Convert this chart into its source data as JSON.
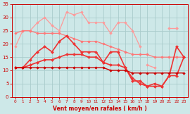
{
  "bg_color": "#cde8e8",
  "grid_color": "#aacccc",
  "text_color": "#cc0000",
  "xlabel": "Vent moyen/en rafales ( km/h )",
  "xlim": [
    -0.5,
    23.5
  ],
  "ylim": [
    0,
    35
  ],
  "yticks": [
    0,
    5,
    10,
    15,
    20,
    25,
    30,
    35
  ],
  "xticks": [
    0,
    1,
    2,
    3,
    4,
    5,
    6,
    7,
    8,
    9,
    10,
    11,
    12,
    13,
    14,
    15,
    16,
    17,
    18,
    19,
    20,
    21,
    22,
    23
  ],
  "series": [
    {
      "color": "#ff9999",
      "lw": 0.9,
      "marker": "D",
      "ms": 1.8,
      "y": [
        19,
        25,
        25,
        28,
        30,
        27,
        25,
        32,
        31,
        32,
        28,
        28,
        28,
        24,
        28,
        28,
        25,
        19,
        null,
        null,
        null,
        26,
        26,
        null
      ]
    },
    {
      "color": "#ff9999",
      "lw": 0.9,
      "marker": "D",
      "ms": 1.8,
      "y": [
        null,
        null,
        null,
        null,
        null,
        null,
        null,
        null,
        null,
        null,
        null,
        null,
        null,
        null,
        null,
        null,
        null,
        null,
        12,
        11,
        null,
        null,
        26,
        null
      ]
    },
    {
      "color": "#ff7777",
      "lw": 0.9,
      "marker": "D",
      "ms": 1.8,
      "y": [
        24,
        25,
        25,
        24,
        24,
        24,
        24,
        23,
        22,
        21,
        21,
        21,
        20,
        19,
        18,
        17,
        16,
        16,
        16,
        15,
        15,
        15,
        15,
        15
      ]
    },
    {
      "color": "#ee3333",
      "lw": 1.2,
      "marker": "D",
      "ms": 2.0,
      "y": [
        11,
        11,
        14,
        17,
        19,
        17,
        21,
        23,
        20,
        17,
        17,
        17,
        13,
        17,
        17,
        11,
        6,
        6,
        4,
        4,
        4,
        8,
        19,
        15
      ]
    },
    {
      "color": "#ee3333",
      "lw": 1.2,
      "marker": "D",
      "ms": 2.0,
      "y": [
        11,
        11,
        12,
        13,
        14,
        14,
        15,
        16,
        16,
        16,
        15,
        15,
        13,
        12,
        12,
        11,
        7,
        5,
        4,
        5,
        4,
        8,
        8,
        15
      ]
    },
    {
      "color": "#cc0000",
      "lw": 1.0,
      "marker": "D",
      "ms": 1.8,
      "y": [
        11,
        11,
        11,
        11,
        11,
        11,
        11,
        11,
        11,
        11,
        11,
        11,
        11,
        10,
        10,
        10,
        9,
        9,
        9,
        9,
        9,
        9,
        9,
        9
      ]
    }
  ]
}
